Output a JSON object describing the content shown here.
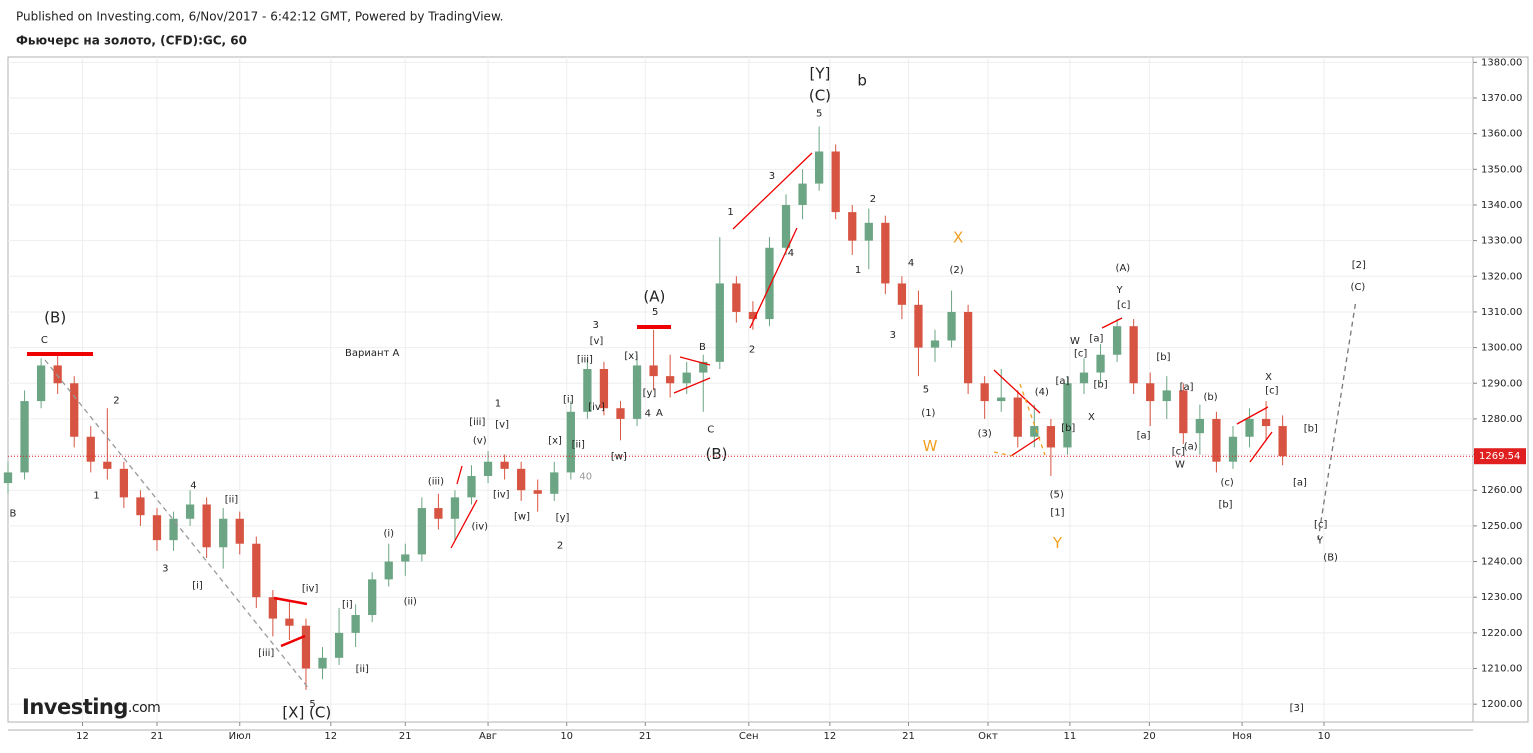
{
  "header": {
    "published": "Published on Investing.com, 6/Nov/2017 - 6:42:12 GMT, Powered by TradingView.",
    "symbol": "Фьючерс на золото, (CFD):GC, 60"
  },
  "logo": {
    "name": "Investing",
    "suffix": ".com"
  },
  "chart_data": {
    "type": "candlestick",
    "up_color": "#6ba583",
    "down_color": "#d75442",
    "grid": true,
    "last_price_line_color": "#e02020",
    "xlim": [
      2,
      179
    ],
    "ylim": [
      1195,
      1381.5
    ],
    "xticks": [
      {
        "value": 11,
        "label": "12"
      },
      {
        "value": 20,
        "label": "21"
      },
      {
        "value": 30,
        "label": "Июл"
      },
      {
        "value": 41,
        "label": "12"
      },
      {
        "value": 50,
        "label": "21"
      },
      {
        "value": 60,
        "label": "Авг"
      },
      {
        "value": 69.5,
        "label": "10"
      },
      {
        "value": 79,
        "label": "21"
      },
      {
        "value": 91.5,
        "label": "Сен"
      },
      {
        "value": 101.3,
        "label": "12"
      },
      {
        "value": 110.8,
        "label": "21"
      },
      {
        "value": 120.4,
        "label": "Окт"
      },
      {
        "value": 130.3,
        "label": "11"
      },
      {
        "value": 139.9,
        "label": "20"
      },
      {
        "value": 151.1,
        "label": "Ноя"
      },
      {
        "value": 161,
        "label": "10"
      }
    ],
    "yticks": [
      {
        "value": 1200,
        "label": "1200.00"
      },
      {
        "value": 1210,
        "label": "1210.00"
      },
      {
        "value": 1220,
        "label": "1220.00"
      },
      {
        "value": 1230,
        "label": "1230.00"
      },
      {
        "value": 1240,
        "label": "1240.00"
      },
      {
        "value": 1250,
        "label": "1250.00"
      },
      {
        "value": 1260,
        "label": "1260.00"
      },
      {
        "value": 1270,
        "label": "1270.00"
      },
      {
        "value": 1280,
        "label": "1280.00"
      },
      {
        "value": 1290,
        "label": "1290.00"
      },
      {
        "value": 1300,
        "label": "1300.00"
      },
      {
        "value": 1310,
        "label": "1310.00"
      },
      {
        "value": 1320,
        "label": "1320.00"
      },
      {
        "value": 1330,
        "label": "1330.00"
      },
      {
        "value": 1340,
        "label": "1340.00"
      },
      {
        "value": 1350,
        "label": "1350.00"
      },
      {
        "value": 1360,
        "label": "1360.00"
      },
      {
        "value": 1370,
        "label": "1370.00"
      },
      {
        "value": 1380,
        "label": "1380.00"
      }
    ],
    "x": [
      2,
      4,
      6,
      8,
      10,
      12,
      14,
      16,
      18,
      20,
      22,
      24,
      26,
      28,
      30,
      32,
      34,
      36,
      38,
      40,
      42,
      44,
      46,
      48,
      50,
      52,
      54,
      56,
      58,
      60,
      62,
      64,
      66,
      68,
      70,
      72,
      74,
      76,
      78,
      80,
      82,
      84,
      86,
      88,
      90,
      92,
      94,
      96,
      98,
      100,
      102,
      104,
      106,
      108,
      110,
      112,
      114,
      116,
      118,
      120,
      122,
      124,
      126,
      128,
      130,
      132,
      134,
      136,
      138,
      140,
      142,
      144,
      146,
      148,
      150,
      152,
      154,
      156
    ],
    "open": [
      1262,
      1265,
      1285,
      1295,
      1290,
      1275,
      1268,
      1266,
      1258,
      1253,
      1246,
      1252,
      1256,
      1244,
      1252,
      1245,
      1230,
      1224,
      1222,
      1210,
      1213,
      1220,
      1225,
      1235,
      1240,
      1242,
      1255,
      1252,
      1258,
      1264,
      1268,
      1266,
      1260,
      1259,
      1265,
      1282,
      1294,
      1283,
      1280,
      1295,
      1292,
      1290,
      1293,
      1296,
      1318,
      1310,
      1308,
      1328,
      1340,
      1346,
      1355,
      1338,
      1330,
      1335,
      1318,
      1312,
      1300,
      1302,
      1310,
      1290,
      1285,
      1286,
      1275,
      1278,
      1272,
      1290,
      1293,
      1298,
      1306,
      1290,
      1285,
      1288,
      1276,
      1280,
      1268,
      1275,
      1280,
      1278
    ],
    "high": [
      1268,
      1288,
      1297,
      1298,
      1292,
      1278,
      1283,
      1268,
      1260,
      1255,
      1254,
      1260,
      1258,
      1255,
      1254,
      1247,
      1232,
      1229,
      1224,
      1216,
      1227,
      1228,
      1237,
      1245,
      1245,
      1258,
      1259,
      1260,
      1267,
      1271,
      1270,
      1268,
      1263,
      1268,
      1285,
      1297,
      1296,
      1285,
      1298,
      1305,
      1298,
      1296,
      1298,
      1331,
      1320,
      1313,
      1331,
      1343,
      1350,
      1362,
      1357,
      1340,
      1339,
      1337,
      1320,
      1316,
      1305,
      1316,
      1312,
      1292,
      1294,
      1288,
      1284,
      1280,
      1292,
      1297,
      1301,
      1308,
      1308,
      1293,
      1292,
      1290,
      1284,
      1282,
      1278,
      1283,
      1285,
      1281
    ],
    "low": [
      1259,
      1263,
      1283,
      1287,
      1272,
      1265,
      1263,
      1255,
      1250,
      1243,
      1243,
      1250,
      1241,
      1238,
      1242,
      1227,
      1219,
      1218,
      1204,
      1207,
      1211,
      1216,
      1223,
      1233,
      1236,
      1240,
      1249,
      1246,
      1256,
      1262,
      1263,
      1257,
      1254,
      1257,
      1263,
      1280,
      1281,
      1274,
      1278,
      1288,
      1286,
      1287,
      1282,
      1294,
      1307,
      1305,
      1306,
      1326,
      1336,
      1344,
      1336,
      1326,
      1322,
      1315,
      1308,
      1292,
      1296,
      1300,
      1287,
      1280,
      1282,
      1272,
      1272,
      1264,
      1270,
      1287,
      1290,
      1296,
      1287,
      1278,
      1280,
      1273,
      1270,
      1265,
      1266,
      1272,
      1274,
      1267
    ],
    "close": [
      1265,
      1285,
      1295,
      1290,
      1275,
      1268,
      1266,
      1258,
      1253,
      1246,
      1252,
      1256,
      1244,
      1252,
      1245,
      1230,
      1224,
      1222,
      1210,
      1213,
      1220,
      1225,
      1235,
      1240,
      1242,
      1255,
      1252,
      1258,
      1264,
      1268,
      1266,
      1260,
      1259,
      1265,
      1282,
      1294,
      1283,
      1280,
      1295,
      1292,
      1290,
      1293,
      1296,
      1318,
      1310,
      1308,
      1328,
      1340,
      1346,
      1355,
      1338,
      1330,
      1335,
      1318,
      1312,
      1300,
      1302,
      1310,
      1290,
      1285,
      1286,
      1275,
      1278,
      1272,
      1290,
      1293,
      1298,
      1306,
      1290,
      1285,
      1288,
      1276,
      1280,
      1268,
      1275,
      1280,
      1278,
      1269.54
    ],
    "annotations": [
      {
        "text": "B",
        "x": 2.6,
        "y": 1253.5
      },
      {
        "text": "(B)",
        "x": 7.7,
        "y": 1308.3,
        "large": true
      },
      {
        "text": "C",
        "x": 6.4,
        "y": 1302.2
      },
      {
        "text": "2",
        "x": 15.1,
        "y": 1285.1
      },
      {
        "text": "1",
        "x": 12.7,
        "y": 1258.5
      },
      {
        "text": "3",
        "x": 21,
        "y": 1238.1
      },
      {
        "text": "4",
        "x": 24.4,
        "y": 1261.3
      },
      {
        "text": "[ii]",
        "x": 29,
        "y": 1257.4
      },
      {
        "text": "[i]",
        "x": 24.9,
        "y": 1233.3
      },
      {
        "text": "[iii]",
        "x": 33.2,
        "y": 1214.3
      },
      {
        "text": "[iv]",
        "x": 38.5,
        "y": 1232.5
      },
      {
        "text": "5",
        "x": 38.8,
        "y": 1200
      },
      {
        "text": "[X] (C)",
        "x": 38.1,
        "y": 1197.5,
        "large": true
      },
      {
        "text": "[i]",
        "x": 43,
        "y": 1228
      },
      {
        "text": "[ii]",
        "x": 44.8,
        "y": 1209.8
      },
      {
        "text": "(i)",
        "x": 48,
        "y": 1247.9
      },
      {
        "text": "(ii)",
        "x": 50.6,
        "y": 1228.8
      },
      {
        "text": "(iii)",
        "x": 53.7,
        "y": 1262.4
      },
      {
        "text": "(iv)",
        "x": 59,
        "y": 1249.8
      },
      {
        "text": "(v)",
        "x": 59,
        "y": 1273.9
      },
      {
        "text": "[iii]",
        "x": 58.7,
        "y": 1279.2
      },
      {
        "text": "[v]",
        "x": 61.7,
        "y": 1278.4
      },
      {
        "text": "1",
        "x": 61.2,
        "y": 1284.3
      },
      {
        "text": "[iv]",
        "x": 61.6,
        "y": 1258.8
      },
      {
        "text": "[w]",
        "x": 64.1,
        "y": 1252.6
      },
      {
        "text": "[y]",
        "x": 69,
        "y": 1252.4
      },
      {
        "text": "2",
        "x": 68.7,
        "y": 1244.5
      },
      {
        "text": "[x]",
        "x": 68.1,
        "y": 1273.9
      },
      {
        "text": "[ii]",
        "x": 70.9,
        "y": 1272.8
      },
      {
        "text": "[i]",
        "x": 69.7,
        "y": 1285.4
      },
      {
        "text": "40",
        "x": 71.8,
        "y": 1263.8,
        "color": "#999999"
      },
      {
        "text": "[iii]",
        "x": 71.7,
        "y": 1296.6
      },
      {
        "text": "[v]",
        "x": 73.1,
        "y": 1301.9
      },
      {
        "text": "3",
        "x": 73,
        "y": 1306.4
      },
      {
        "text": "[iv]",
        "x": 73.1,
        "y": 1283.4
      },
      {
        "text": "[w]",
        "x": 75.8,
        "y": 1269.4
      },
      {
        "text": "[x]",
        "x": 77.3,
        "y": 1297.7
      },
      {
        "text": "[y]",
        "x": 79.5,
        "y": 1287.3
      },
      {
        "text": "4",
        "x": 79.3,
        "y": 1281.5
      },
      {
        "text": "A",
        "x": 80.7,
        "y": 1281.7
      },
      {
        "text": "(A)",
        "x": 80.1,
        "y": 1314.2,
        "large": true
      },
      {
        "text": "5",
        "x": 80.2,
        "y": 1310
      },
      {
        "text": "B",
        "x": 85.9,
        "y": 1300.2
      },
      {
        "text": "C",
        "x": 86.9,
        "y": 1277
      },
      {
        "text": "(B)",
        "x": 87.6,
        "y": 1270,
        "large": true
      },
      {
        "text": "1",
        "x": 89.3,
        "y": 1338
      },
      {
        "text": "2",
        "x": 91.9,
        "y": 1299.4
      },
      {
        "text": "3",
        "x": 94.3,
        "y": 1348.1
      },
      {
        "text": "4",
        "x": 96.6,
        "y": 1326.5
      },
      {
        "text": "5",
        "x": 100,
        "y": 1365.7
      },
      {
        "text": "(C)",
        "x": 100.1,
        "y": 1370.5,
        "large": true
      },
      {
        "text": "[Y]",
        "x": 100.1,
        "y": 1376.7,
        "large": true
      },
      {
        "text": "b",
        "x": 105.2,
        "y": 1374.7,
        "large": true
      },
      {
        "text": "2",
        "x": 106.5,
        "y": 1341.7
      },
      {
        "text": "1",
        "x": 104.7,
        "y": 1321.8
      },
      {
        "text": "4",
        "x": 111.1,
        "y": 1323.7
      },
      {
        "text": "3",
        "x": 108.9,
        "y": 1303.6
      },
      {
        "text": "5",
        "x": 112.9,
        "y": 1288.2
      },
      {
        "text": "(1)",
        "x": 113.2,
        "y": 1281.7
      },
      {
        "text": "W",
        "x": 113.4,
        "y": 1272.2,
        "color": "#f0a020",
        "large": true
      },
      {
        "text": "X",
        "x": 116.8,
        "y": 1330.7,
        "color": "#f0a020",
        "large": true
      },
      {
        "text": "(2)",
        "x": 116.6,
        "y": 1321.8
      },
      {
        "text": "(3)",
        "x": 120,
        "y": 1275.9
      },
      {
        "text": "(4)",
        "x": 126.9,
        "y": 1287.6
      },
      {
        "text": "(5)",
        "x": 128.7,
        "y": 1258.8
      },
      {
        "text": "[1]",
        "x": 128.8,
        "y": 1253.8
      },
      {
        "text": "Y",
        "x": 128.8,
        "y": 1245.1,
        "color": "#f0a020",
        "large": true
      },
      {
        "text": "W",
        "x": 130.9,
        "y": 1301.9
      },
      {
        "text": "[c]",
        "x": 131.6,
        "y": 1298.3
      },
      {
        "text": "[a]",
        "x": 129.4,
        "y": 1290.7
      },
      {
        "text": "[b]",
        "x": 130.1,
        "y": 1277.5
      },
      {
        "text": "[b]",
        "x": 134,
        "y": 1289.6
      },
      {
        "text": "[a]",
        "x": 133.5,
        "y": 1302.5
      },
      {
        "text": "X",
        "x": 132.9,
        "y": 1280.6
      },
      {
        "text": "(A)",
        "x": 136.7,
        "y": 1322.3
      },
      {
        "text": "Y",
        "x": 136.3,
        "y": 1316.2
      },
      {
        "text": "[c]",
        "x": 136.8,
        "y": 1312
      },
      {
        "text": "[b]",
        "x": 141.6,
        "y": 1297.4
      },
      {
        "text": "[a]",
        "x": 139.2,
        "y": 1275.3
      },
      {
        "text": "[a]",
        "x": 144.4,
        "y": 1289
      },
      {
        "text": "(b)",
        "x": 147.3,
        "y": 1286.2
      },
      {
        "text": "[c]",
        "x": 143.4,
        "y": 1270.8
      },
      {
        "text": "(a)",
        "x": 144.9,
        "y": 1272.2
      },
      {
        "text": "W",
        "x": 143.6,
        "y": 1267.2
      },
      {
        "text": "(c)",
        "x": 149.3,
        "y": 1262.2
      },
      {
        "text": "[b]",
        "x": 149.1,
        "y": 1256
      },
      {
        "text": "X",
        "x": 154.3,
        "y": 1291.8
      },
      {
        "text": "[c]",
        "x": 154.7,
        "y": 1287.9
      },
      {
        "text": "[b]",
        "x": 159.4,
        "y": 1277.3
      },
      {
        "text": "[a]",
        "x": 158.1,
        "y": 1262.2
      },
      {
        "text": "[c]",
        "x": 160.6,
        "y": 1250.4
      },
      {
        "text": "Y",
        "x": 160.5,
        "y": 1245.9
      },
      {
        "text": "(B)",
        "x": 161.8,
        "y": 1241.2
      },
      {
        "text": "[2]",
        "x": 165.2,
        "y": 1323.2
      },
      {
        "text": "(C)",
        "x": 165.1,
        "y": 1317
      },
      {
        "text": "[3]",
        "x": 157.7,
        "y": 1198.9
      },
      {
        "text": "Вариант A",
        "x": 46,
        "y": 1298.5
      }
    ]
  }
}
